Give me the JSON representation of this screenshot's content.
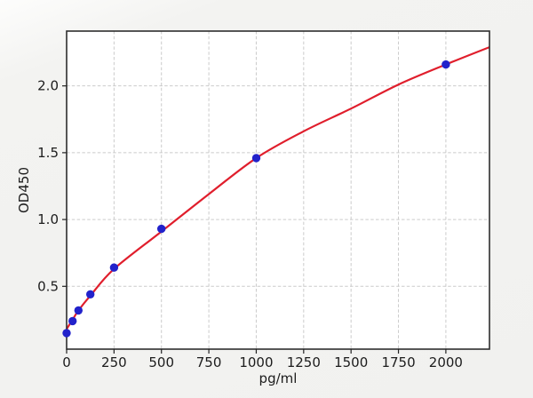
{
  "chart_data": {
    "type": "scatter",
    "title": "",
    "xlabel": "pg/ml",
    "ylabel": "OD450",
    "xlim": [
      0,
      2230
    ],
    "ylim": [
      0.03,
      2.41
    ],
    "grid": true,
    "legend_position": "none",
    "x_ticks": [
      {
        "value": 0,
        "label": "0"
      },
      {
        "value": 250,
        "label": "250"
      },
      {
        "value": 500,
        "label": "500"
      },
      {
        "value": 750,
        "label": "750"
      },
      {
        "value": 1000,
        "label": "1000"
      },
      {
        "value": 1250,
        "label": "1250"
      },
      {
        "value": 1500,
        "label": "1500"
      },
      {
        "value": 1750,
        "label": "1750"
      },
      {
        "value": 2000,
        "label": "2000"
      }
    ],
    "y_ticks": [
      {
        "value": 0.5,
        "label": "0.5"
      },
      {
        "value": 1.0,
        "label": "1.0"
      },
      {
        "value": 1.5,
        "label": "1.5"
      },
      {
        "value": 2.0,
        "label": "2.0"
      }
    ],
    "colors": {
      "figure_bg": "#f2f2f0",
      "plot_bg": "#ffffff",
      "grid": "#cbcbcb",
      "spine": "#2e2e2e",
      "tick_text": "#1c1c1c",
      "curve": "#e01e2c",
      "marker": "#2222cb"
    },
    "series": [
      {
        "name": "standard-points",
        "type": "scatter",
        "color_key": "marker",
        "points": [
          [
            0,
            0.15
          ],
          [
            31.25,
            0.24
          ],
          [
            62.5,
            0.32
          ],
          [
            125,
            0.44
          ],
          [
            250,
            0.64
          ],
          [
            500,
            0.93
          ],
          [
            1000,
            1.46
          ],
          [
            2000,
            2.16
          ]
        ]
      },
      {
        "name": "fit-curve",
        "type": "line",
        "color_key": "curve",
        "points": [
          [
            0,
            0.18
          ],
          [
            31.25,
            0.25
          ],
          [
            62.5,
            0.32
          ],
          [
            125,
            0.43
          ],
          [
            250,
            0.63
          ],
          [
            500,
            0.91
          ],
          [
            750,
            1.19
          ],
          [
            1000,
            1.46
          ],
          [
            1250,
            1.66
          ],
          [
            1500,
            1.83
          ],
          [
            1750,
            2.01
          ],
          [
            2000,
            2.16
          ],
          [
            2230,
            2.29
          ]
        ]
      }
    ]
  }
}
